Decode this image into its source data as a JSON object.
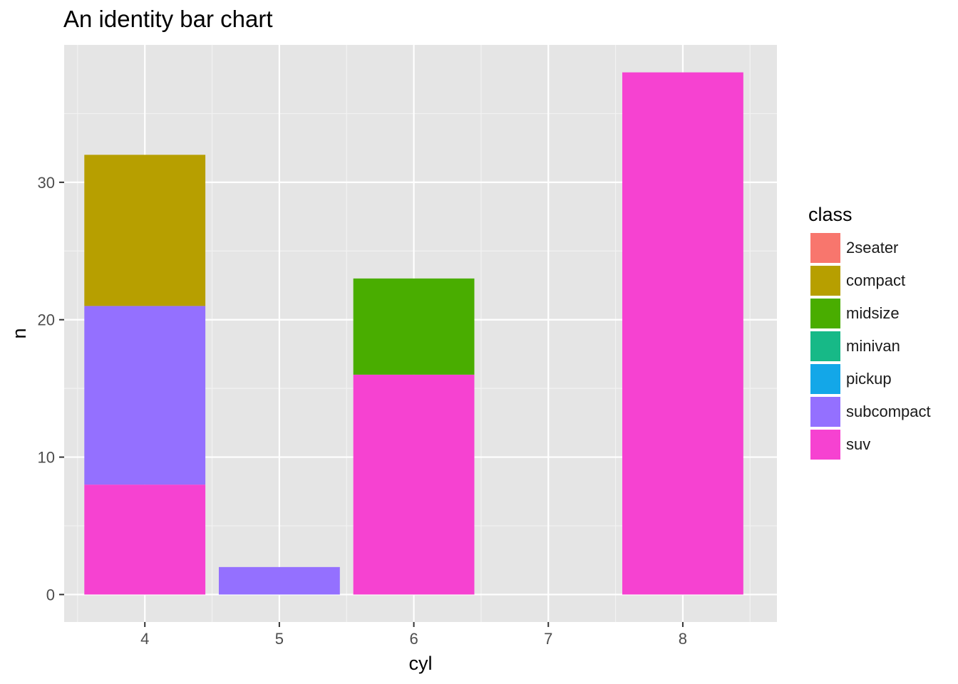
{
  "chart_data": {
    "type": "bar",
    "stacked": true,
    "title": "An identity bar chart",
    "xlabel": "cyl",
    "ylabel": "n",
    "xlim": [
      3.4,
      8.7
    ],
    "ylim": [
      -2,
      40
    ],
    "x_ticks": [
      4,
      5,
      6,
      7,
      8
    ],
    "y_ticks": [
      0,
      10,
      20,
      30
    ],
    "grid": true,
    "legend": {
      "title": "class",
      "position": "right",
      "entries": [
        {
          "name": "2seater",
          "color": "#F8766D"
        },
        {
          "name": "compact",
          "color": "#B79F00"
        },
        {
          "name": "midsize",
          "color": "#49AD00"
        },
        {
          "name": "minivan",
          "color": "#17B987"
        },
        {
          "name": "pickup",
          "color": "#13A7E8"
        },
        {
          "name": "subcompact",
          "color": "#9470FF"
        },
        {
          "name": "suv",
          "color": "#F642D1"
        }
      ]
    },
    "bars": [
      {
        "cyl": 4,
        "segments": [
          {
            "class": "suv",
            "n": 8
          },
          {
            "class": "subcompact",
            "n": 13
          },
          {
            "class": "compact",
            "n": 11
          }
        ]
      },
      {
        "cyl": 5,
        "segments": [
          {
            "class": "subcompact",
            "n": 2
          }
        ]
      },
      {
        "cyl": 6,
        "segments": [
          {
            "class": "suv",
            "n": 16
          },
          {
            "class": "midsize",
            "n": 7
          }
        ]
      },
      {
        "cyl": 8,
        "segments": [
          {
            "class": "suv",
            "n": 38
          }
        ]
      }
    ]
  }
}
